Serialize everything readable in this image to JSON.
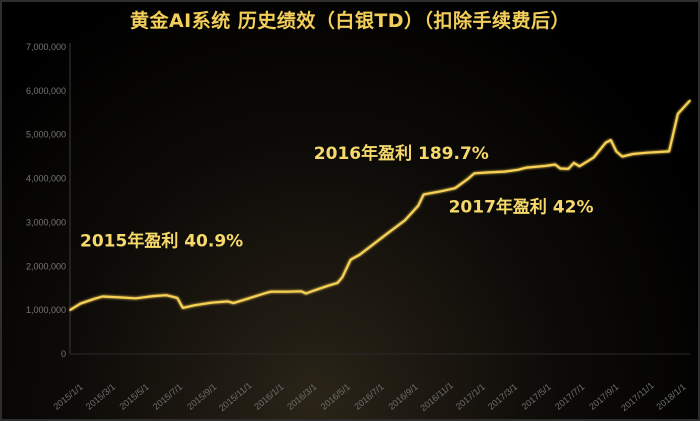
{
  "title": "黄金AI系统 历史绩效（白银TD）（扣除手续费后）",
  "colors": {
    "line": "#f7d154",
    "annotation": "#f6d96a",
    "title": "#f3cf5a",
    "tick": "#777777"
  },
  "chart_data": {
    "type": "line",
    "title": "黄金AI系统 历史绩效（白银TD）（扣除手续费后）",
    "xlabel": "",
    "ylabel": "",
    "ylim": [
      0,
      7000000
    ],
    "y_ticks": [
      "0",
      "1,000,000",
      "2,000,000",
      "3,000,000",
      "4,000,000",
      "5,000,000",
      "6,000,000",
      "7,000,000"
    ],
    "x_ticks": [
      "2015/1/1",
      "2015/3/1",
      "2015/5/1",
      "2015/7/1",
      "2015/9/1",
      "2015/11/1",
      "2016/1/1",
      "2016/3/1",
      "2016/5/1",
      "2016/7/1",
      "2016/9/1",
      "2016/11/1",
      "2017/1/1",
      "2017/3/1",
      "2017/5/1",
      "2017/7/1",
      "2017/9/1",
      "2017/11/1",
      "2018/1/1"
    ],
    "grid": false,
    "series": [
      {
        "values": [
          [
            "2015/1/1",
            1000000
          ],
          [
            "2015/1/20",
            1150000
          ],
          [
            "2015/2/15",
            1260000
          ],
          [
            "2015/3/1",
            1310000
          ],
          [
            "2015/4/1",
            1290000
          ],
          [
            "2015/5/1",
            1270000
          ],
          [
            "2015/6/1",
            1320000
          ],
          [
            "2015/6/25",
            1340000
          ],
          [
            "2015/7/15",
            1280000
          ],
          [
            "2015/7/25",
            1050000
          ],
          [
            "2015/8/15",
            1110000
          ],
          [
            "2015/9/15",
            1170000
          ],
          [
            "2015/10/15",
            1200000
          ],
          [
            "2015/10/25",
            1160000
          ],
          [
            "2015/11/20",
            1260000
          ],
          [
            "2015/12/20",
            1380000
          ],
          [
            "2016/1/1",
            1420000
          ],
          [
            "2016/2/1",
            1420000
          ],
          [
            "2016/2/25",
            1430000
          ],
          [
            "2016/3/5",
            1380000
          ],
          [
            "2016/3/20",
            1450000
          ],
          [
            "2016/4/15",
            1560000
          ],
          [
            "2016/5/1",
            1620000
          ],
          [
            "2016/5/10",
            1750000
          ],
          [
            "2016/5/25",
            2150000
          ],
          [
            "2016/6/10",
            2260000
          ],
          [
            "2016/7/1",
            2460000
          ],
          [
            "2016/8/1",
            2760000
          ],
          [
            "2016/9/1",
            3050000
          ],
          [
            "2016/9/25",
            3380000
          ],
          [
            "2016/10/5",
            3640000
          ],
          [
            "2016/11/5",
            3710000
          ],
          [
            "2016/12/1",
            3780000
          ],
          [
            "2016/12/25",
            4000000
          ],
          [
            "2017/1/5",
            4120000
          ],
          [
            "2017/2/1",
            4140000
          ],
          [
            "2017/3/1",
            4160000
          ],
          [
            "2017/3/25",
            4200000
          ],
          [
            "2017/4/10",
            4250000
          ],
          [
            "2017/5/15",
            4290000
          ],
          [
            "2017/6/1",
            4320000
          ],
          [
            "2017/6/10",
            4230000
          ],
          [
            "2017/6/25",
            4220000
          ],
          [
            "2017/7/5",
            4360000
          ],
          [
            "2017/7/15",
            4280000
          ],
          [
            "2017/8/10",
            4480000
          ],
          [
            "2017/9/1",
            4820000
          ],
          [
            "2017/9/10",
            4880000
          ],
          [
            "2017/9/20",
            4620000
          ],
          [
            "2017/10/1",
            4500000
          ],
          [
            "2017/10/20",
            4560000
          ],
          [
            "2017/11/15",
            4590000
          ],
          [
            "2017/12/25",
            4620000
          ],
          [
            "2018/1/10",
            5480000
          ],
          [
            "2018/2/1",
            5780000
          ]
        ]
      }
    ],
    "annotations": [
      {
        "text": "2015年盈利 40.9%",
        "date": "2015/1/1",
        "value": 2450000
      },
      {
        "text": "2016年盈利 189.7%",
        "date": "2016/3/1",
        "value": 4450000
      },
      {
        "text": "2017年盈利 42%",
        "date": "2016/11/1",
        "value": 3230000
      }
    ]
  }
}
